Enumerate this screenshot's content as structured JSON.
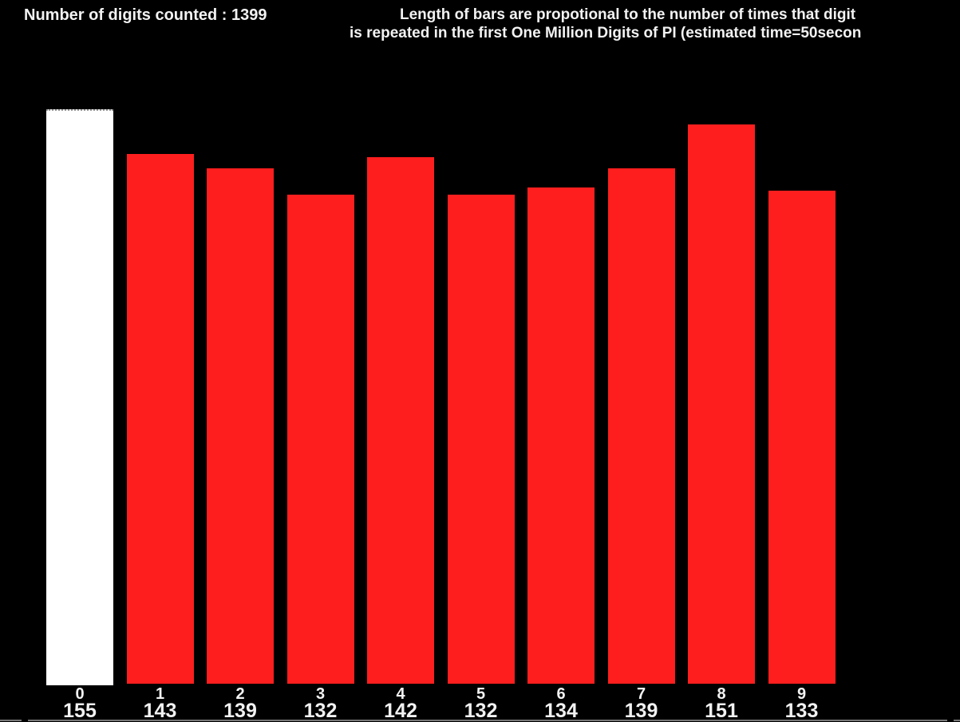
{
  "header": {
    "left_status": "Number of digits counted : 1399",
    "right_title_line1": "Length of bars are propotional to the number of times that digit",
    "right_title_line2": "is repeated in the first One Million Digits of PI (estimated time=50secon"
  },
  "chart_data": {
    "type": "bar",
    "categories": [
      "0",
      "1",
      "2",
      "3",
      "4",
      "5",
      "6",
      "7",
      "8",
      "9"
    ],
    "values": [
      155,
      143,
      139,
      132,
      142,
      132,
      134,
      139,
      151,
      133
    ],
    "title": "Length of bars are propotional to the number of times that digit is repeated in the first One Million Digits of PI (estimated time=50secon",
    "xlabel": "",
    "ylabel": "",
    "ylim": [
      0,
      155
    ],
    "grid": false,
    "legend": false,
    "value_labels_shown": true,
    "bar_default_color": "#ff1e1e",
    "highlight_index": 0,
    "highlight_color": "#ffffff"
  },
  "colors": {
    "background": "#000000",
    "text": "#f2f2f2",
    "bottom_edge": "#777777"
  }
}
